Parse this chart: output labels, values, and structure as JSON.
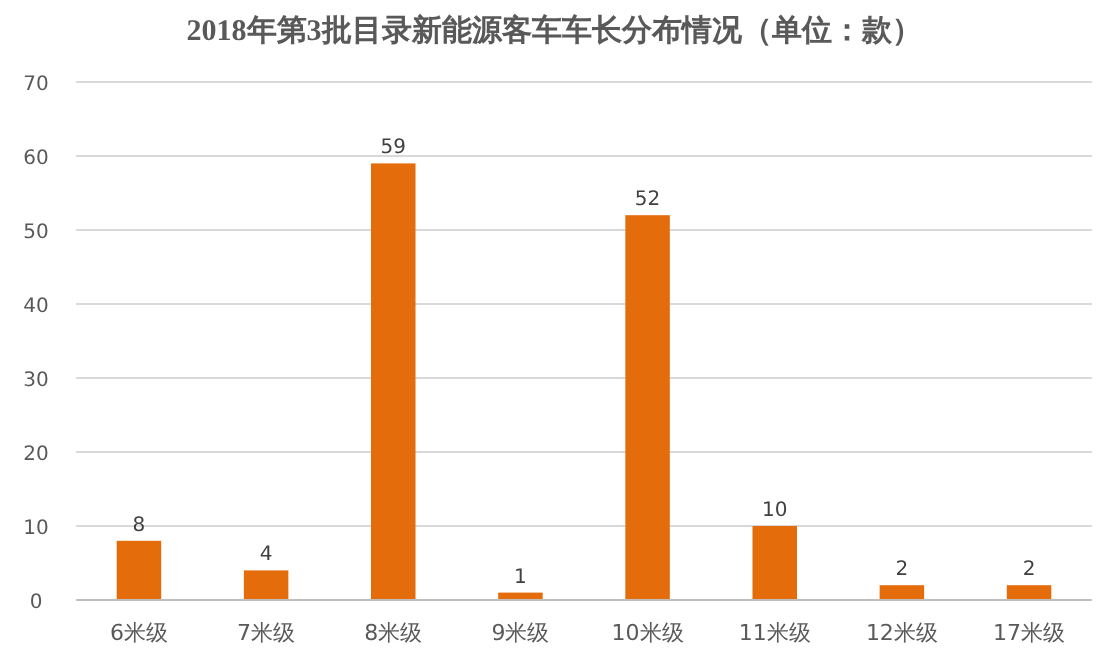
{
  "chart_data": {
    "type": "bar",
    "title": "2018年第3批目录新能源客车车长分布情况（单位：款）",
    "categories": [
      "6米级",
      "7米级",
      "8米级",
      "9米级",
      "10米级",
      "11米级",
      "12米级",
      "17米级"
    ],
    "values": [
      8,
      4,
      59,
      1,
      52,
      10,
      2,
      2
    ],
    "color": "#e46c0a",
    "ylim": [
      0,
      70
    ],
    "yticks": [
      0,
      10,
      20,
      30,
      40,
      50,
      60,
      70
    ],
    "grid": "y",
    "data_labels": true
  }
}
